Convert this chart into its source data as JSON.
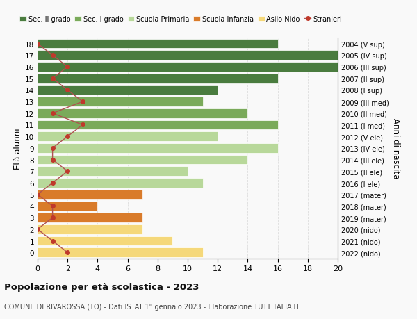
{
  "ages": [
    18,
    17,
    16,
    15,
    14,
    13,
    12,
    11,
    10,
    9,
    8,
    7,
    6,
    5,
    4,
    3,
    2,
    1,
    0
  ],
  "years": [
    "2004 (V sup)",
    "2005 (IV sup)",
    "2006 (III sup)",
    "2007 (II sup)",
    "2008 (I sup)",
    "2009 (III med)",
    "2010 (II med)",
    "2011 (I med)",
    "2012 (V ele)",
    "2013 (IV ele)",
    "2014 (III ele)",
    "2015 (II ele)",
    "2016 (I ele)",
    "2017 (mater)",
    "2018 (mater)",
    "2019 (mater)",
    "2020 (nido)",
    "2021 (nido)",
    "2022 (nido)"
  ],
  "values": [
    16,
    20,
    20,
    16,
    12,
    11,
    14,
    16,
    12,
    16,
    14,
    10,
    11,
    7,
    4,
    7,
    7,
    9,
    11
  ],
  "stranieri": [
    0,
    1,
    2,
    1,
    2,
    3,
    1,
    3,
    2,
    1,
    1,
    2,
    1,
    0,
    1,
    1,
    0,
    1,
    2
  ],
  "bar_colors": [
    "#4a7c3f",
    "#4a7c3f",
    "#4a7c3f",
    "#4a7c3f",
    "#4a7c3f",
    "#7aaa5a",
    "#7aaa5a",
    "#7aaa5a",
    "#b8d89a",
    "#b8d89a",
    "#b8d89a",
    "#b8d89a",
    "#b8d89a",
    "#d97b2a",
    "#d97b2a",
    "#d97b2a",
    "#f5d87a",
    "#f5d87a",
    "#f5d87a"
  ],
  "legend_labels": [
    "Sec. II grado",
    "Sec. I grado",
    "Scuola Primaria",
    "Scuola Infanzia",
    "Asilo Nido",
    "Stranieri"
  ],
  "legend_colors": [
    "#4a7c3f",
    "#7aaa5a",
    "#b8d89a",
    "#d97b2a",
    "#f5d87a",
    "#c0392b"
  ],
  "stranieri_color": "#c0392b",
  "stranieri_line_color": "#b05050",
  "ylabel_left": "Età alunni",
  "ylabel_right": "Anni di nascita",
  "xlim": [
    0,
    20
  ],
  "xticks": [
    0,
    2,
    4,
    6,
    8,
    10,
    12,
    14,
    16,
    18,
    20
  ],
  "title": "Popolazione per età scolastica - 2023",
  "subtitle": "COMUNE DI RIVAROSSA (TO) - Dati ISTAT 1° gennaio 2023 - Elaborazione TUTTITALIA.IT",
  "bg_color": "#f9f9f9",
  "grid_color": "#dddddd"
}
